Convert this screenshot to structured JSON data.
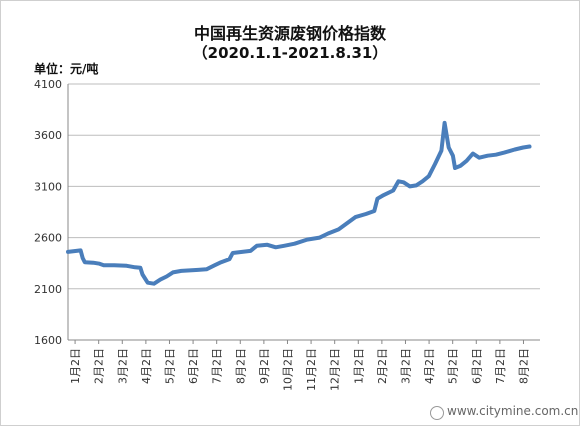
{
  "chart_data": {
    "type": "line",
    "title": "中国再生资源废钢价格指数",
    "subtitle": "（2020.1.1-2021.8.31）",
    "ylabel": "单位：元/吨",
    "ylim": [
      1600,
      4100
    ],
    "yticks": [
      1600,
      2100,
      2600,
      3100,
      3600,
      4100
    ],
    "categories": [
      "1月2日",
      "2月2日",
      "3月2日",
      "4月2日",
      "5月2日",
      "6月2日",
      "7月2日",
      "8月2日",
      "9月2日",
      "10月2日",
      "11月2日",
      "12月2日",
      "1月2日",
      "2月2日",
      "3月2日",
      "4月2日",
      "5月2日",
      "6月2日",
      "7月2日",
      "8月2日"
    ],
    "line_color": "#4a7ebb",
    "grid": true,
    "series": [
      {
        "name": "",
        "points": [
          [
            0.0,
            2460
          ],
          [
            0.6,
            2475
          ],
          [
            0.7,
            2400
          ],
          [
            0.8,
            2360
          ],
          [
            1.2,
            2355
          ],
          [
            1.5,
            2345
          ],
          [
            1.7,
            2330
          ],
          [
            2.2,
            2330
          ],
          [
            2.8,
            2325
          ],
          [
            3.2,
            2310
          ],
          [
            3.45,
            2305
          ],
          [
            3.55,
            2240
          ],
          [
            3.8,
            2160
          ],
          [
            4.1,
            2150
          ],
          [
            4.4,
            2190
          ],
          [
            4.7,
            2220
          ],
          [
            5.0,
            2260
          ],
          [
            5.4,
            2275
          ],
          [
            5.8,
            2280
          ],
          [
            6.2,
            2285
          ],
          [
            6.6,
            2290
          ],
          [
            7.0,
            2330
          ],
          [
            7.3,
            2360
          ],
          [
            7.7,
            2390
          ],
          [
            7.85,
            2450
          ],
          [
            8.3,
            2460
          ],
          [
            8.7,
            2470
          ],
          [
            9.0,
            2520
          ],
          [
            9.5,
            2530
          ],
          [
            9.9,
            2505
          ],
          [
            10.3,
            2520
          ],
          [
            10.8,
            2540
          ],
          [
            11.4,
            2580
          ],
          [
            12.0,
            2600
          ],
          [
            12.4,
            2640
          ],
          [
            12.9,
            2680
          ],
          [
            13.3,
            2740
          ],
          [
            13.7,
            2800
          ],
          [
            14.2,
            2830
          ],
          [
            14.6,
            2860
          ],
          [
            14.75,
            2980
          ],
          [
            15.0,
            3010
          ],
          [
            15.5,
            3060
          ],
          [
            15.75,
            3150
          ],
          [
            16.0,
            3140
          ],
          [
            16.3,
            3100
          ],
          [
            16.6,
            3110
          ],
          [
            16.9,
            3150
          ],
          [
            17.2,
            3200
          ],
          [
            17.5,
            3320
          ],
          [
            17.8,
            3450
          ],
          [
            17.95,
            3720
          ],
          [
            18.15,
            3480
          ],
          [
            18.35,
            3400
          ],
          [
            18.45,
            3280
          ],
          [
            18.7,
            3300
          ],
          [
            19.0,
            3350
          ],
          [
            19.3,
            3420
          ],
          [
            19.6,
            3380
          ],
          [
            20.0,
            3400
          ],
          [
            20.4,
            3410
          ],
          [
            20.8,
            3430
          ],
          [
            21.3,
            3460
          ],
          [
            21.7,
            3480
          ],
          [
            22.0,
            3490
          ]
        ]
      }
    ]
  },
  "watermark": "www.citymine.com.cn"
}
